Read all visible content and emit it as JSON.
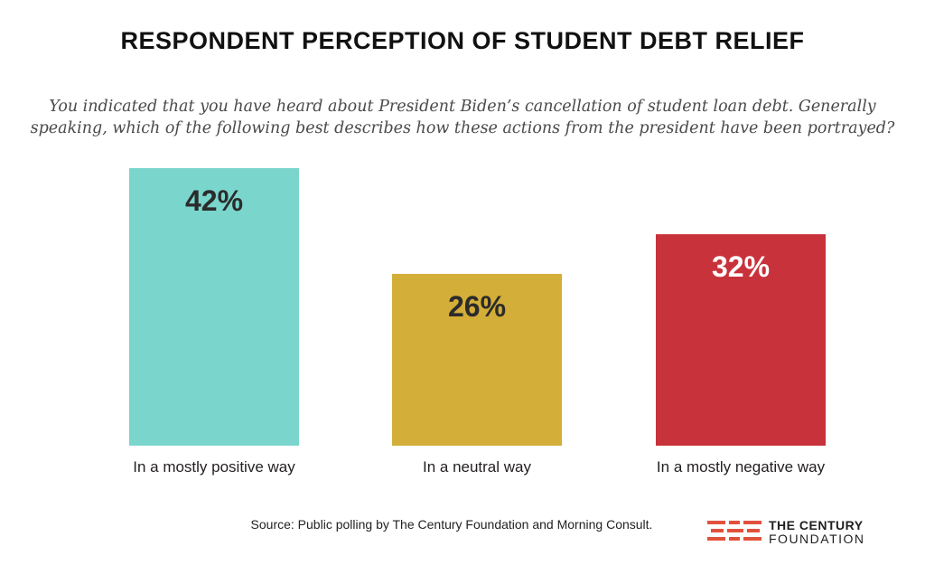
{
  "chart_data": {
    "type": "bar",
    "title": "RESPONDENT PERCEPTION OF STUDENT DEBT RELIEF",
    "subtitle": "You indicated that you have heard about President Biden’s cancellation of student loan debt. Generally speaking, which of the following best describes how these actions from the president have been portrayed?",
    "categories": [
      "In a mostly positive way",
      "In a neutral way",
      "In a mostly negative way"
    ],
    "values": [
      42,
      26,
      32
    ],
    "value_labels": [
      "42%",
      "26%",
      "32%"
    ],
    "colors": [
      "#7ad6cc",
      "#d3ae38",
      "#c8323a"
    ],
    "value_label_colors": [
      "#2b2b2b",
      "#2b2b2b",
      "#ffffff"
    ],
    "ylim": [
      0,
      42
    ],
    "grid": false,
    "xlabel": "",
    "ylabel": ""
  },
  "source": "Source: Public polling by The Century Foundation and Morning Consult.",
  "logo": {
    "line1": "THE CENTURY",
    "line2": "FOUNDATION",
    "mark_color": "#e0523d"
  }
}
